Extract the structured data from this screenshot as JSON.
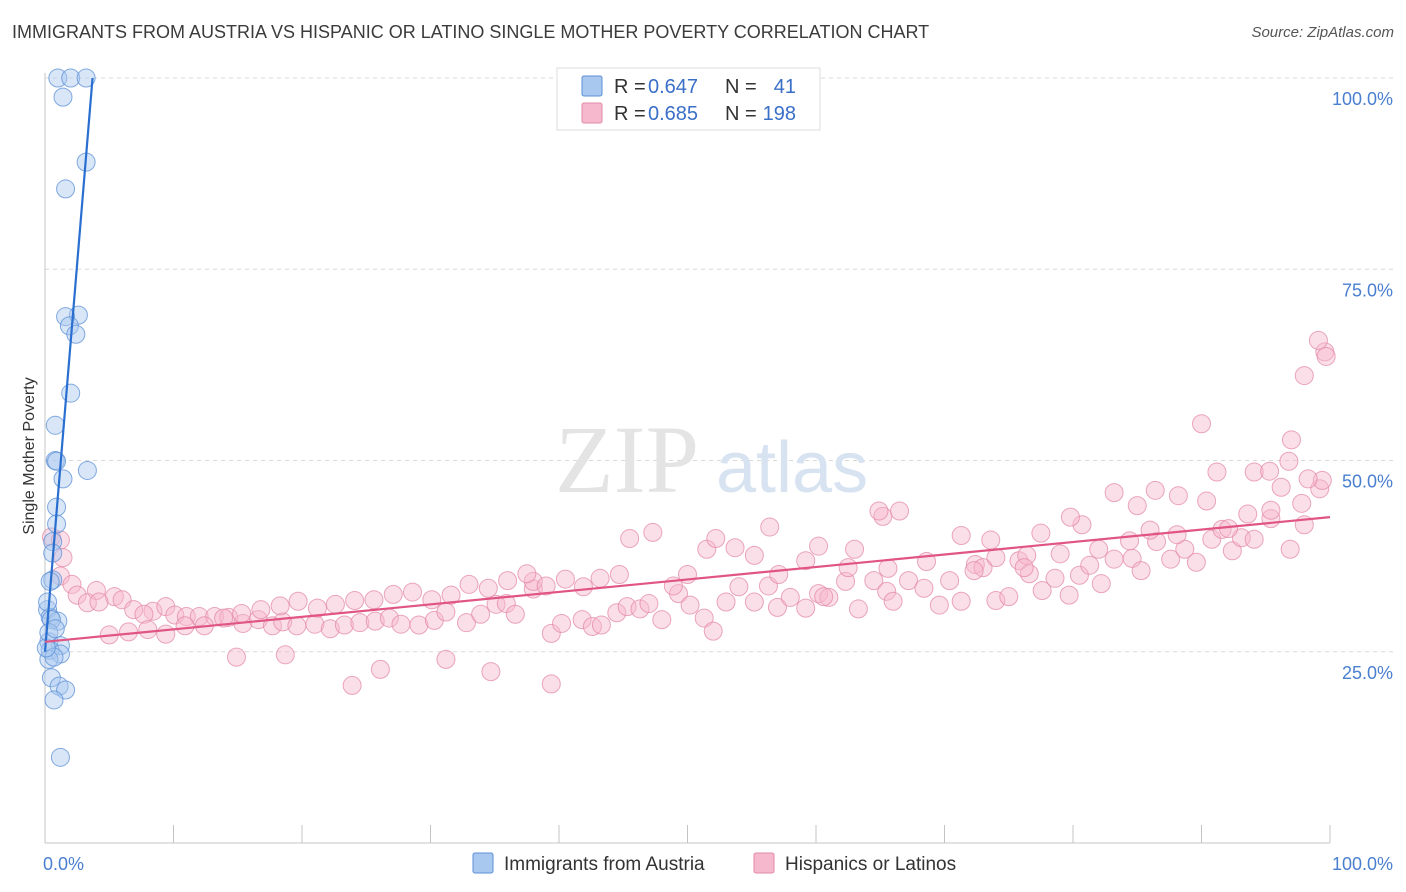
{
  "title": "IMMIGRANTS FROM AUSTRIA VS HISPANIC OR LATINO SINGLE MOTHER POVERTY CORRELATION CHART",
  "source": "Source: ZipAtlas.com",
  "watermark": {
    "zip": "ZIP",
    "atlas": "atlas"
  },
  "stats": [
    {
      "r_label": "R = ",
      "r_value": "0.647",
      "n_label": "N = ",
      "n_value": "41",
      "color": "#a9c8f0",
      "stroke": "#5b8fd6"
    },
    {
      "r_label": "R = ",
      "r_value": "0.685",
      "n_label": "N = ",
      "n_value": "198",
      "color": "#f6b8cc",
      "stroke": "#e38aa7"
    }
  ],
  "chart_data": {
    "type": "scatter",
    "xlabel": "",
    "ylabel": "Single Mother Poverty",
    "xlim": [
      0,
      100
    ],
    "ylim": [
      0,
      100
    ],
    "x_tick_labels": [
      {
        "value": 0,
        "label": "0.0%"
      },
      {
        "value": 100,
        "label": "100.0%"
      }
    ],
    "y_tick_labels": [
      {
        "value": 25,
        "label": "25.0%"
      },
      {
        "value": 50,
        "label": "50.0%"
      },
      {
        "value": 75,
        "label": "75.0%"
      },
      {
        "value": 100,
        "label": "100.0%"
      }
    ],
    "legend_position": "bottom-center",
    "grid": true,
    "series": [
      {
        "name": "Immigrants from Austria",
        "color": "#a9c8f0",
        "stroke": "#5b8fd6",
        "line_color": "#2a6fd0",
        "trend": {
          "x": [
            0.0,
            3.7
          ],
          "y": [
            25.0,
            100.0
          ]
        },
        "points": [
          [
            1.0,
            100.0
          ],
          [
            2.0,
            100.0
          ],
          [
            3.2,
            100.0
          ],
          [
            1.4,
            97.5
          ],
          [
            3.2,
            89.0
          ],
          [
            1.6,
            85.5
          ],
          [
            2.6,
            69.0
          ],
          [
            1.6,
            68.8
          ],
          [
            1.9,
            67.6
          ],
          [
            2.4,
            66.5
          ],
          [
            2.0,
            58.8
          ],
          [
            0.8,
            54.6
          ],
          [
            0.8,
            50.0
          ],
          [
            0.9,
            49.9
          ],
          [
            3.3,
            48.7
          ],
          [
            1.4,
            47.6
          ],
          [
            0.9,
            43.9
          ],
          [
            0.9,
            41.7
          ],
          [
            0.6,
            39.4
          ],
          [
            0.6,
            37.9
          ],
          [
            0.6,
            34.4
          ],
          [
            0.4,
            34.2
          ],
          [
            0.2,
            30.5
          ],
          [
            0.4,
            29.5
          ],
          [
            1.0,
            29.0
          ],
          [
            0.5,
            29.2
          ],
          [
            0.3,
            26.3
          ],
          [
            1.2,
            25.8
          ],
          [
            0.4,
            25.2
          ],
          [
            1.2,
            24.7
          ],
          [
            0.3,
            24.0
          ],
          [
            0.7,
            24.3
          ],
          [
            0.5,
            21.6
          ],
          [
            1.1,
            20.5
          ],
          [
            1.6,
            20.0
          ],
          [
            0.7,
            18.7
          ],
          [
            1.2,
            11.2
          ],
          [
            0.1,
            25.5
          ],
          [
            0.3,
            27.5
          ],
          [
            0.8,
            28.0
          ],
          [
            0.2,
            31.5
          ]
        ]
      },
      {
        "name": "Hispanics or Latinos",
        "color": "#f6b8cc",
        "stroke": "#e38aa7",
        "line_color": "#e05584",
        "trend": {
          "x": [
            0.0,
            100.0
          ],
          "y": [
            26.3,
            42.6
          ]
        },
        "points": [
          [
            0.5,
            40.0
          ],
          [
            1.2,
            39.6
          ],
          [
            1.4,
            37.3
          ],
          [
            1.2,
            34.9
          ],
          [
            2.1,
            33.8
          ],
          [
            4.0,
            33.0
          ],
          [
            2.5,
            32.4
          ],
          [
            5.4,
            32.2
          ],
          [
            3.3,
            31.4
          ],
          [
            4.2,
            31.5
          ],
          [
            6.0,
            31.8
          ],
          [
            6.9,
            30.5
          ],
          [
            8.4,
            30.3
          ],
          [
            9.4,
            30.9
          ],
          [
            7.7,
            29.9
          ],
          [
            10.1,
            29.8
          ],
          [
            11.0,
            29.6
          ],
          [
            12.0,
            29.6
          ],
          [
            13.2,
            29.6
          ],
          [
            14.3,
            29.5
          ],
          [
            15.4,
            28.7
          ],
          [
            16.6,
            29.2
          ],
          [
            17.7,
            28.4
          ],
          [
            18.5,
            28.9
          ],
          [
            19.6,
            28.4
          ],
          [
            21.0,
            28.6
          ],
          [
            22.2,
            28.0
          ],
          [
            23.3,
            28.5
          ],
          [
            24.5,
            28.8
          ],
          [
            25.7,
            29.0
          ],
          [
            26.8,
            29.4
          ],
          [
            27.7,
            28.6
          ],
          [
            29.1,
            28.5
          ],
          [
            30.3,
            29.1
          ],
          [
            31.2,
            30.2
          ],
          [
            32.8,
            28.8
          ],
          [
            33.9,
            29.9
          ],
          [
            35.1,
            31.2
          ],
          [
            35.9,
            31.3
          ],
          [
            36.6,
            29.9
          ],
          [
            38.0,
            33.2
          ],
          [
            38.0,
            34.2
          ],
          [
            39.4,
            27.4
          ],
          [
            40.2,
            28.7
          ],
          [
            41.8,
            29.2
          ],
          [
            42.6,
            28.3
          ],
          [
            43.3,
            28.5
          ],
          [
            44.5,
            30.1
          ],
          [
            45.3,
            30.9
          ],
          [
            46.3,
            30.6
          ],
          [
            47.0,
            31.3
          ],
          [
            48.0,
            29.2
          ],
          [
            49.3,
            32.6
          ],
          [
            48.9,
            33.6
          ],
          [
            50.2,
            31.1
          ],
          [
            51.3,
            29.4
          ],
          [
            52.0,
            27.7
          ],
          [
            53.0,
            31.5
          ],
          [
            54.0,
            33.5
          ],
          [
            55.2,
            31.5
          ],
          [
            56.3,
            33.6
          ],
          [
            57.0,
            30.8
          ],
          [
            58.0,
            32.1
          ],
          [
            59.2,
            30.7
          ],
          [
            60.2,
            32.6
          ],
          [
            61.0,
            32.1
          ],
          [
            62.3,
            34.2
          ],
          [
            63.3,
            30.6
          ],
          [
            64.5,
            34.3
          ],
          [
            65.5,
            32.9
          ],
          [
            66.0,
            31.6
          ],
          [
            67.2,
            34.3
          ],
          [
            68.4,
            33.3
          ],
          [
            69.6,
            31.1
          ],
          [
            70.4,
            34.3
          ],
          [
            71.3,
            31.6
          ],
          [
            72.4,
            36.4
          ],
          [
            73.0,
            36.0
          ],
          [
            74.0,
            31.7
          ],
          [
            75.0,
            32.2
          ],
          [
            75.8,
            36.9
          ],
          [
            76.6,
            35.2
          ],
          [
            77.6,
            33.0
          ],
          [
            78.6,
            34.6
          ],
          [
            79.7,
            32.4
          ],
          [
            80.5,
            35.0
          ],
          [
            81.3,
            36.3
          ],
          [
            82.2,
            33.9
          ],
          [
            83.2,
            37.1
          ],
          [
            84.6,
            37.2
          ],
          [
            85.3,
            35.6
          ],
          [
            86.5,
            39.4
          ],
          [
            87.6,
            37.1
          ],
          [
            88.7,
            38.4
          ],
          [
            89.6,
            36.7
          ],
          [
            90.8,
            39.7
          ],
          [
            91.6,
            41.0
          ],
          [
            92.4,
            38.2
          ],
          [
            93.1,
            39.9
          ],
          [
            94.1,
            39.7
          ],
          [
            95.4,
            42.4
          ],
          [
            96.2,
            46.5
          ],
          [
            96.9,
            38.4
          ],
          [
            98.0,
            41.6
          ],
          [
            99.2,
            46.3
          ],
          [
            51.5,
            38.4
          ],
          [
            56.4,
            41.3
          ],
          [
            60.2,
            38.8
          ],
          [
            63.0,
            38.4
          ],
          [
            65.6,
            35.9
          ],
          [
            68.6,
            36.8
          ],
          [
            72.3,
            35.6
          ],
          [
            74.0,
            37.3
          ],
          [
            76.4,
            37.6
          ],
          [
            79.0,
            37.8
          ],
          [
            82.0,
            38.4
          ],
          [
            84.4,
            39.5
          ],
          [
            86.0,
            40.9
          ],
          [
            88.1,
            40.3
          ],
          [
            90.4,
            44.7
          ],
          [
            92.1,
            41.1
          ],
          [
            93.6,
            43.0
          ],
          [
            95.4,
            43.5
          ],
          [
            97.8,
            44.4
          ],
          [
            99.4,
            47.4
          ],
          [
            97.0,
            52.7
          ],
          [
            98.3,
            47.6
          ],
          [
            94.1,
            48.5
          ],
          [
            95.3,
            48.6
          ],
          [
            91.2,
            48.5
          ],
          [
            90.0,
            54.8
          ],
          [
            88.2,
            45.4
          ],
          [
            86.4,
            46.1
          ],
          [
            85.0,
            44.1
          ],
          [
            83.2,
            45.8
          ],
          [
            80.7,
            41.6
          ],
          [
            79.8,
            42.6
          ],
          [
            77.5,
            40.5
          ],
          [
            76.2,
            36.0
          ],
          [
            73.6,
            39.6
          ],
          [
            71.3,
            40.2
          ],
          [
            66.5,
            43.4
          ],
          [
            65.2,
            42.7
          ],
          [
            64.9,
            43.4
          ],
          [
            62.5,
            36.0
          ],
          [
            60.6,
            32.2
          ],
          [
            59.2,
            36.9
          ],
          [
            57.1,
            35.1
          ],
          [
            55.2,
            37.6
          ],
          [
            53.7,
            38.6
          ],
          [
            52.2,
            39.8
          ],
          [
            50.0,
            35.1
          ],
          [
            47.3,
            40.6
          ],
          [
            45.5,
            39.8
          ],
          [
            44.7,
            35.1
          ],
          [
            43.2,
            34.6
          ],
          [
            41.9,
            33.5
          ],
          [
            40.5,
            34.5
          ],
          [
            39.0,
            33.6
          ],
          [
            37.5,
            35.2
          ],
          [
            36.0,
            34.3
          ],
          [
            34.5,
            33.3
          ],
          [
            33.0,
            33.8
          ],
          [
            31.6,
            32.4
          ],
          [
            30.1,
            31.8
          ],
          [
            28.6,
            32.8
          ],
          [
            27.1,
            32.5
          ],
          [
            25.6,
            31.8
          ],
          [
            24.1,
            31.7
          ],
          [
            22.6,
            31.2
          ],
          [
            21.2,
            30.7
          ],
          [
            19.7,
            31.6
          ],
          [
            18.3,
            31.0
          ],
          [
            16.8,
            30.5
          ],
          [
            15.3,
            30.0
          ],
          [
            13.9,
            29.4
          ],
          [
            12.4,
            28.4
          ],
          [
            10.9,
            28.4
          ],
          [
            9.4,
            27.3
          ],
          [
            8.0,
            27.9
          ],
          [
            6.5,
            27.6
          ],
          [
            5.0,
            27.2
          ],
          [
            99.6,
            64.2
          ],
          [
            99.1,
            65.7
          ],
          [
            98.0,
            61.1
          ],
          [
            96.8,
            49.9
          ],
          [
            99.7,
            63.6
          ],
          [
            23.9,
            20.6
          ],
          [
            26.1,
            22.7
          ],
          [
            31.2,
            24.0
          ],
          [
            14.9,
            24.3
          ],
          [
            39.4,
            20.8
          ],
          [
            34.7,
            22.4
          ],
          [
            18.7,
            24.6
          ]
        ]
      }
    ]
  }
}
